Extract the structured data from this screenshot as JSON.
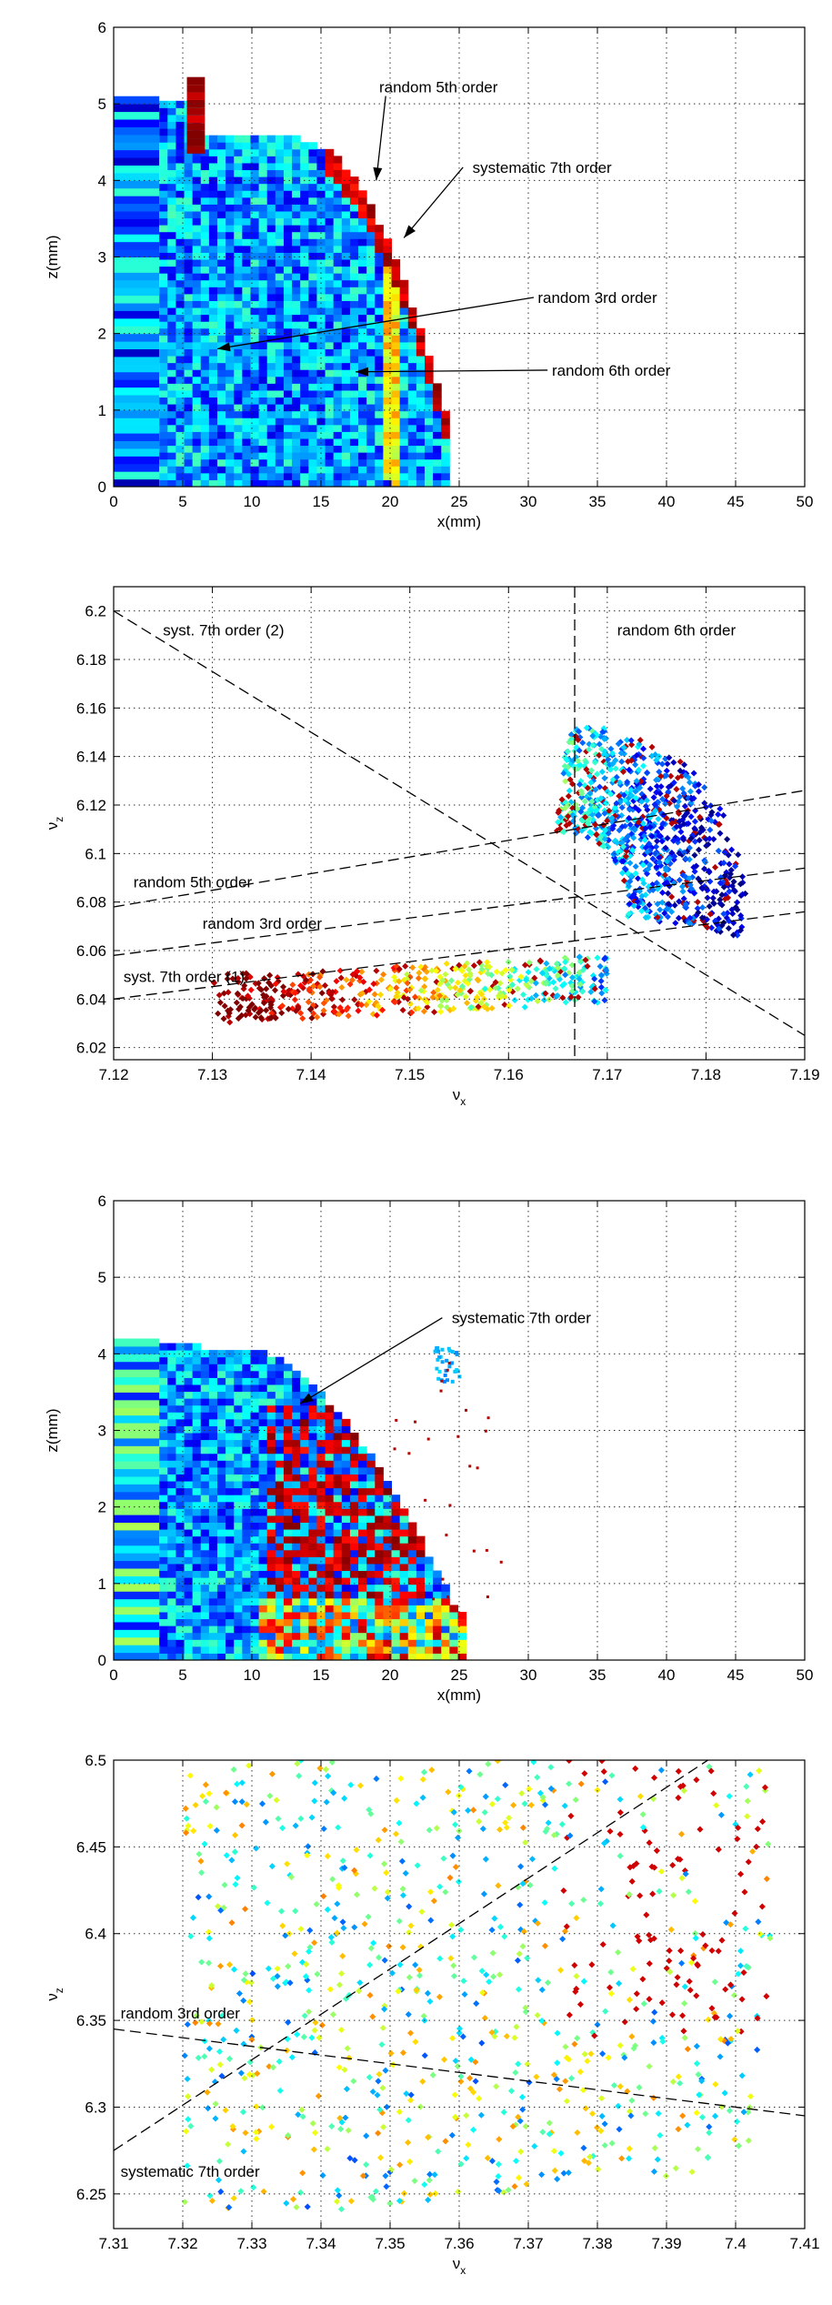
{
  "chart_data": [
    {
      "type": "heatmap",
      "xlim": [
        0,
        50
      ],
      "ylim": [
        0,
        6
      ],
      "xticks": [
        "0",
        "5",
        "10",
        "15",
        "20",
        "25",
        "30",
        "35",
        "40",
        "45",
        "50"
      ],
      "yticks": [
        "0",
        "1",
        "2",
        "3",
        "4",
        "5",
        "6"
      ],
      "xlabel": "x(mm)",
      "ylabel": "z(mm)",
      "grid": true,
      "colormap": "jet",
      "annotations": [
        {
          "text": "random 5th order",
          "label_at": [
            23.5,
            5.15
          ],
          "arrow_to": [
            19.0,
            4.0
          ]
        },
        {
          "text": "systematic 7th order",
          "label_at": [
            31.0,
            4.1
          ],
          "arrow_to": [
            21.0,
            3.25
          ]
        },
        {
          "text": "random 3rd order",
          "label_at": [
            35.0,
            2.4
          ],
          "arrow_to": [
            7.5,
            1.8
          ]
        },
        {
          "text": "random 6th order",
          "label_at": [
            36.0,
            1.45
          ],
          "arrow_to": [
            17.5,
            1.5
          ]
        }
      ]
    },
    {
      "type": "scatter",
      "xlim": [
        7.12,
        7.19
      ],
      "ylim": [
        6.015,
        6.21
      ],
      "xticks": [
        "7.12",
        "7.13",
        "7.14",
        "7.15",
        "7.16",
        "7.17",
        "7.18",
        "7.19"
      ],
      "yticks": [
        "6.02",
        "6.04",
        "6.06",
        "6.08",
        "6.1",
        "6.12",
        "6.14",
        "6.16",
        "6.18",
        "6.2"
      ],
      "xlabel": "ν",
      "xlabel_sub": "x",
      "ylabel": "ν",
      "ylabel_sub": "z",
      "grid": true,
      "colormap": "jet",
      "resonance_lines": [
        {
          "text": "syst. 7th order (2)",
          "from": [
            7.12,
            6.2
          ],
          "to": [
            7.19,
            6.025
          ],
          "label_at": [
            7.125,
            6.19
          ]
        },
        {
          "text": "random 6th order",
          "from": [
            7.1667,
            6.21
          ],
          "to": [
            7.1667,
            6.015
          ],
          "label_at": [
            7.171,
            6.19
          ]
        },
        {
          "text": "random 5th order",
          "from": [
            7.12,
            6.078
          ],
          "to": [
            7.19,
            6.126
          ],
          "label_at": [
            7.122,
            6.086
          ]
        },
        {
          "text": "random 3rd order",
          "from": [
            7.12,
            6.058
          ],
          "to": [
            7.19,
            6.094
          ],
          "label_at": [
            7.129,
            6.069
          ]
        },
        {
          "text": "syst. 7th order (1)",
          "from": [
            7.12,
            6.04
          ],
          "to": [
            7.19,
            6.076
          ],
          "label_at": [
            7.121,
            6.047
          ]
        }
      ]
    },
    {
      "type": "heatmap",
      "xlim": [
        0,
        50
      ],
      "ylim": [
        0,
        6
      ],
      "xticks": [
        "0",
        "5",
        "10",
        "15",
        "20",
        "25",
        "30",
        "35",
        "40",
        "45",
        "50"
      ],
      "yticks": [
        "0",
        "1",
        "2",
        "3",
        "4",
        "5",
        "6"
      ],
      "xlabel": "x(mm)",
      "ylabel": "z(mm)",
      "grid": true,
      "colormap": "jet",
      "annotations": [
        {
          "text": "systematic 7th order",
          "label_at": [
            29.5,
            4.4
          ],
          "arrow_to": [
            13.5,
            3.35
          ]
        }
      ]
    },
    {
      "type": "scatter",
      "xlim": [
        7.31,
        7.41
      ],
      "ylim": [
        6.23,
        6.5
      ],
      "xticks": [
        "7.31",
        "7.32",
        "7.33",
        "7.34",
        "7.35",
        "7.36",
        "7.37",
        "7.38",
        "7.39",
        "7.4",
        "7.41"
      ],
      "yticks": [
        "6.25",
        "6.3",
        "6.35",
        "6.4",
        "6.45",
        "6.5"
      ],
      "xlabel": "ν",
      "xlabel_sub": "x",
      "ylabel": "ν",
      "ylabel_sub": "z",
      "grid": true,
      "colormap": "jet",
      "resonance_lines": [
        {
          "text": "random 3rd order",
          "from": [
            7.31,
            6.345
          ],
          "to": [
            7.41,
            6.295
          ],
          "label_at": [
            7.311,
            6.351
          ]
        },
        {
          "text": "systematic 7th order",
          "from": [
            7.31,
            6.275
          ],
          "to": [
            7.396,
            6.5
          ],
          "label_at": [
            7.311,
            6.26
          ]
        }
      ]
    }
  ]
}
